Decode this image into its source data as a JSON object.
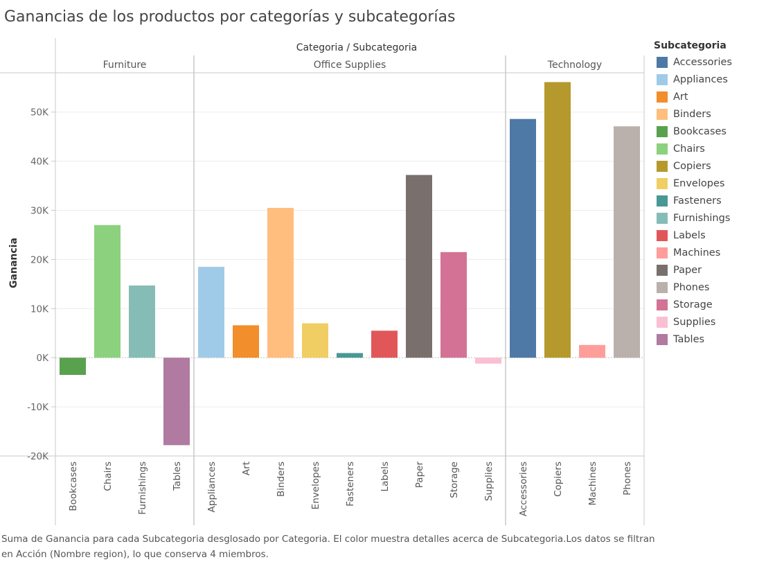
{
  "title": "Ganancias de los productos por categorías y subcategorías",
  "caption": "Suma de Ganancia para cada Subcategoria desglosado por Categoria. El color muestra detalles acerca de Subcategoria.Los datos se filtran en Acción (Nombre region), lo que conserva 4 miembros.",
  "chart_data": {
    "type": "bar",
    "header_title": "Categoria / Subcategoria",
    "ylabel": "Ganancia",
    "ylim": [
      -20000,
      58000
    ],
    "yticks": [
      50000,
      40000,
      30000,
      20000,
      10000,
      0,
      -10000,
      -20000
    ],
    "ytick_labels": [
      "50K",
      "40K",
      "30K",
      "20K",
      "10K",
      "0K",
      "-10K",
      "-20K"
    ],
    "grid": true,
    "legend_position": "right",
    "categories": [
      {
        "name": "Furniture",
        "bars": [
          {
            "label": "Bookcases",
            "value": -3500
          },
          {
            "label": "Chairs",
            "value": 27000
          },
          {
            "label": "Furnishings",
            "value": 14700
          },
          {
            "label": "Tables",
            "value": -17800
          }
        ]
      },
      {
        "name": "Office Supplies",
        "bars": [
          {
            "label": "Appliances",
            "value": 18500
          },
          {
            "label": "Art",
            "value": 6600
          },
          {
            "label": "Binders",
            "value": 30500
          },
          {
            "label": "Envelopes",
            "value": 7000
          },
          {
            "label": "Fasteners",
            "value": 950
          },
          {
            "label": "Labels",
            "value": 5500
          },
          {
            "label": "Paper",
            "value": 37200
          },
          {
            "label": "Storage",
            "value": 21500
          },
          {
            "label": "Supplies",
            "value": -1200
          }
        ]
      },
      {
        "name": "Technology",
        "bars": [
          {
            "label": "Accessories",
            "value": 48600
          },
          {
            "label": "Copiers",
            "value": 56100
          },
          {
            "label": "Machines",
            "value": 2600
          },
          {
            "label": "Phones",
            "value": 47100
          }
        ]
      }
    ],
    "legend": {
      "title": "Subcategoria",
      "items": [
        {
          "label": "Accessories",
          "color": "#4e79a7"
        },
        {
          "label": "Appliances",
          "color": "#a0cbe8"
        },
        {
          "label": "Art",
          "color": "#f28e2b"
        },
        {
          "label": "Binders",
          "color": "#ffbe7d"
        },
        {
          "label": "Bookcases",
          "color": "#59a14f"
        },
        {
          "label": "Chairs",
          "color": "#8cd17d"
        },
        {
          "label": "Copiers",
          "color": "#b6992d"
        },
        {
          "label": "Envelopes",
          "color": "#f1ce63"
        },
        {
          "label": "Fasteners",
          "color": "#499894"
        },
        {
          "label": "Furnishings",
          "color": "#86bcb6"
        },
        {
          "label": "Labels",
          "color": "#e15759"
        },
        {
          "label": "Machines",
          "color": "#ff9d9a"
        },
        {
          "label": "Paper",
          "color": "#79706e"
        },
        {
          "label": "Phones",
          "color": "#bab0ac"
        },
        {
          "label": "Storage",
          "color": "#d37295"
        },
        {
          "label": "Supplies",
          "color": "#fabfd2"
        },
        {
          "label": "Tables",
          "color": "#b07aa1"
        }
      ]
    }
  }
}
